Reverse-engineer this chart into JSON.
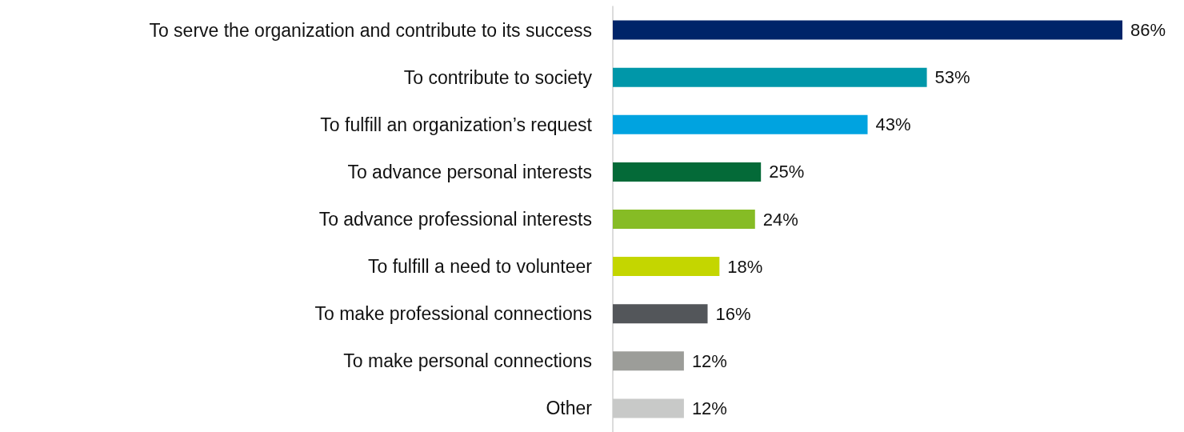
{
  "chart_data": {
    "type": "bar",
    "orientation": "horizontal",
    "categories": [
      "To serve the organization and contribute to its success",
      "To contribute to society",
      "To fulfill an organization’s request",
      "To advance personal interests",
      "To advance professional interests",
      "To fulfill a need to volunteer",
      "To make professional connections",
      "To make personal connections",
      "Other"
    ],
    "values": [
      86,
      53,
      43,
      25,
      24,
      18,
      16,
      12,
      12
    ],
    "colors": [
      "#002469",
      "#0097a9",
      "#00a3e0",
      "#046a38",
      "#86bc25",
      "#c4d600",
      "#53565a",
      "#9c9d99",
      "#c8c9c8"
    ],
    "value_labels": [
      "86%",
      "53%",
      "43%",
      "25%",
      "24%",
      "18%",
      "16%",
      "12%",
      "12%"
    ]
  }
}
